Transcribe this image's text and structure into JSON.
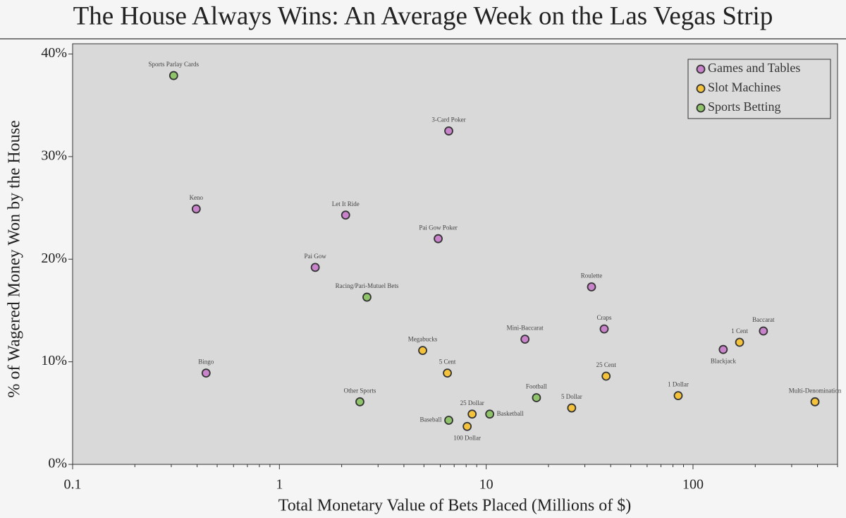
{
  "chart_data": {
    "type": "scatter",
    "title": "The House Always Wins: An Average Week on the Las Vegas Strip",
    "x_label": "Total Monetary Value of Bets Placed (Millions of $)",
    "y_label": "% of Wagered Money Won by the House",
    "x_scale": "log",
    "xlim": [
      0.1,
      500
    ],
    "ylim": [
      0,
      41
    ],
    "xticks": [
      0.1,
      1,
      10,
      100
    ],
    "yticks": [
      {
        "value": 0,
        "label": "0%"
      },
      {
        "value": 10,
        "label": "10%"
      },
      {
        "value": 20,
        "label": "20%"
      },
      {
        "value": 30,
        "label": "30%"
      },
      {
        "value": 40,
        "label": "40%"
      }
    ],
    "legend": "upper right",
    "series": [
      {
        "name": "Games and Tables",
        "color": "#c983cb",
        "labels": [
          "3-Card Poker",
          "Keno",
          "Let It Ride",
          "Pai Gow Poker",
          "Pai Gow",
          "Roulette",
          "Craps",
          "Baccarat",
          "Mini-Baccarat",
          "Blackjack",
          "Bingo"
        ],
        "x": [
          6.59,
          0.396,
          2.09,
          5.86,
          1.49,
          32.3,
          37.2,
          219,
          15.4,
          140,
          0.442
        ],
        "values": [
          32.5,
          24.9,
          24.3,
          22.0,
          19.2,
          17.3,
          13.2,
          13.0,
          12.2,
          11.2,
          8.9
        ]
      },
      {
        "name": "Slot Machines",
        "color": "#f5c23c",
        "labels": [
          "1 Cent",
          "Megabucks",
          "5 Cent",
          "25 Cent",
          "1 Dollar",
          "Multi-Denomination",
          "5 Dollar",
          "25 Dollar",
          "100 Dollar"
        ],
        "x": [
          168,
          4.93,
          6.49,
          38.0,
          84.8,
          389,
          25.9,
          8.55,
          8.09
        ],
        "values": [
          11.9,
          11.1,
          8.9,
          8.6,
          6.7,
          6.1,
          5.5,
          4.9,
          3.7
        ]
      },
      {
        "name": "Sports Betting",
        "color": "#8fc46b",
        "labels": [
          "Sports Parlay Cards",
          "Racing/Pari-Mutuel Bets",
          "Football",
          "Other Sports",
          "Basketball",
          "Baseball"
        ],
        "x": [
          0.308,
          2.65,
          17.5,
          2.45,
          10.4,
          6.59
        ],
        "values": [
          37.9,
          16.3,
          6.5,
          6.1,
          4.9,
          4.3
        ]
      }
    ]
  }
}
